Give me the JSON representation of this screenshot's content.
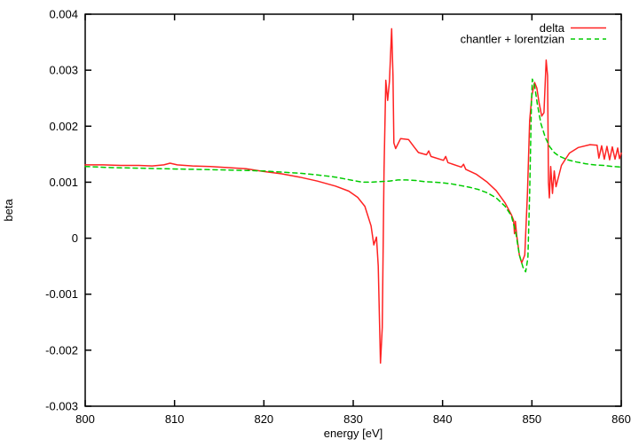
{
  "chart_data": {
    "type": "line",
    "title": "",
    "xlabel": "energy [eV]",
    "ylabel": "beta",
    "xlim": [
      800,
      860
    ],
    "ylim": [
      -0.003,
      0.004
    ],
    "x_ticks": [
      800,
      810,
      820,
      830,
      840,
      850,
      860
    ],
    "x_tick_labels": [
      "800",
      "810",
      "820",
      "830",
      "840",
      "850",
      "860"
    ],
    "y_ticks": [
      -0.003,
      -0.002,
      -0.001,
      0,
      0.001,
      0.002,
      0.003,
      0.004
    ],
    "y_tick_labels": [
      "-0.003",
      "-0.002",
      "-0.001",
      "0",
      "0.001",
      "0.002",
      "0.003",
      "0.004"
    ],
    "grid": false,
    "legend_position": "top-right-inside",
    "background_color": "#ffffff",
    "frame_color": "#000000",
    "text_color": "#000000",
    "series": [
      {
        "name": "delta",
        "color": "#ff2222",
        "style": "solid",
        "points": [
          [
            800,
            0.00131
          ],
          [
            802,
            0.00131
          ],
          [
            804,
            0.0013
          ],
          [
            806,
            0.0013
          ],
          [
            807.5,
            0.00129
          ],
          [
            808.8,
            0.00131
          ],
          [
            809.5,
            0.00134
          ],
          [
            810.3,
            0.00131
          ],
          [
            812,
            0.00129
          ],
          [
            814,
            0.00128
          ],
          [
            816,
            0.00126
          ],
          [
            818,
            0.00124
          ],
          [
            820,
            0.00119
          ],
          [
            822,
            0.00115
          ],
          [
            824,
            0.00109
          ],
          [
            826,
            0.00102
          ],
          [
            828,
            0.00093
          ],
          [
            829.5,
            0.00084
          ],
          [
            830.5,
            0.00073
          ],
          [
            831.3,
            0.00057
          ],
          [
            832,
            0.00022
          ],
          [
            832.3,
            -0.00012
          ],
          [
            832.6,
            2e-05
          ],
          [
            832.8,
            -0.0005
          ],
          [
            833.05,
            -0.00223
          ],
          [
            833.25,
            -0.0016
          ],
          [
            833.45,
            0.0012
          ],
          [
            833.65,
            0.00282
          ],
          [
            833.85,
            0.00246
          ],
          [
            834.05,
            0.0028
          ],
          [
            834.3,
            0.00374
          ],
          [
            834.45,
            0.0029
          ],
          [
            834.55,
            0.0017
          ],
          [
            834.75,
            0.0016
          ],
          [
            835.3,
            0.00178
          ],
          [
            836.2,
            0.00176
          ],
          [
            836.8,
            0.00163
          ],
          [
            837.3,
            0.00153
          ],
          [
            838.2,
            0.00149
          ],
          [
            838.45,
            0.00156
          ],
          [
            838.7,
            0.00146
          ],
          [
            840.1,
            0.00139
          ],
          [
            840.35,
            0.00146
          ],
          [
            840.6,
            0.00135
          ],
          [
            842.1,
            0.00127
          ],
          [
            842.35,
            0.00132
          ],
          [
            842.6,
            0.00123
          ],
          [
            843.8,
            0.00114
          ],
          [
            845,
            0.001
          ],
          [
            846,
            0.00085
          ],
          [
            847,
            0.00063
          ],
          [
            847.7,
            0.00042
          ],
          [
            847.95,
            0.00032
          ],
          [
            848.05,
            8e-05
          ],
          [
            848.15,
            0.0003
          ],
          [
            848.3,
            5e-05
          ],
          [
            848.6,
            -0.0003
          ],
          [
            848.85,
            -0.00044
          ],
          [
            849.2,
            -0.0003
          ],
          [
            849.5,
            0.0008
          ],
          [
            849.75,
            0.0021
          ],
          [
            850.0,
            0.00255
          ],
          [
            850.3,
            0.00278
          ],
          [
            850.55,
            0.00268
          ],
          [
            850.8,
            0.00242
          ],
          [
            851.1,
            0.00218
          ],
          [
            851.35,
            0.00224
          ],
          [
            851.6,
            0.00318
          ],
          [
            851.75,
            0.0029
          ],
          [
            851.85,
            0.001
          ],
          [
            851.95,
            0.00072
          ],
          [
            852.1,
            0.00128
          ],
          [
            852.3,
            0.0008
          ],
          [
            852.5,
            0.0012
          ],
          [
            852.7,
            0.00092
          ],
          [
            853.3,
            0.0013
          ],
          [
            854.2,
            0.00152
          ],
          [
            855.2,
            0.00162
          ],
          [
            856.5,
            0.00167
          ],
          [
            857.3,
            0.00166
          ],
          [
            857.5,
            0.00143
          ],
          [
            857.8,
            0.00165
          ],
          [
            858.1,
            0.00141
          ],
          [
            858.4,
            0.00164
          ],
          [
            858.7,
            0.0014
          ],
          [
            859,
            0.00163
          ],
          [
            859.3,
            0.00141
          ],
          [
            859.6,
            0.00161
          ],
          [
            859.8,
            0.00142
          ],
          [
            860,
            0.00152
          ]
        ]
      },
      {
        "name": "chantler + lorentzian",
        "color": "#00cc00",
        "style": "dashed",
        "points": [
          [
            800,
            0.00128
          ],
          [
            803,
            0.00126
          ],
          [
            806,
            0.00125
          ],
          [
            809,
            0.00124
          ],
          [
            812,
            0.00123
          ],
          [
            815,
            0.00122
          ],
          [
            818,
            0.00121
          ],
          [
            820,
            0.0012
          ],
          [
            822,
            0.00118
          ],
          [
            824,
            0.00116
          ],
          [
            826,
            0.00113
          ],
          [
            828,
            0.00109
          ],
          [
            830,
            0.00103
          ],
          [
            831,
            0.001
          ],
          [
            832,
            0.001
          ],
          [
            833,
            0.00101
          ],
          [
            834,
            0.00102
          ],
          [
            835,
            0.00104
          ],
          [
            836,
            0.00104
          ],
          [
            837,
            0.00103
          ],
          [
            838,
            0.00101
          ],
          [
            839,
            0.001
          ],
          [
            840,
            0.00099
          ],
          [
            841,
            0.00097
          ],
          [
            842,
            0.00094
          ],
          [
            843,
            0.00091
          ],
          [
            844,
            0.00087
          ],
          [
            845,
            0.00081
          ],
          [
            846,
            0.00072
          ],
          [
            847,
            0.00057
          ],
          [
            847.7,
            0.0004
          ],
          [
            848.2,
            0.0001
          ],
          [
            848.6,
            -0.0003
          ],
          [
            849,
            -0.00052
          ],
          [
            849.3,
            -0.0006
          ],
          [
            849.55,
            -0.00035
          ],
          [
            849.75,
            0.0008
          ],
          [
            849.95,
            0.0024
          ],
          [
            850.05,
            0.00284
          ],
          [
            850.3,
            0.00272
          ],
          [
            850.6,
            0.0024
          ],
          [
            851,
            0.00205
          ],
          [
            851.5,
            0.0018
          ],
          [
            852,
            0.00163
          ],
          [
            852.5,
            0.00153
          ],
          [
            853,
            0.00147
          ],
          [
            854,
            0.0014
          ],
          [
            855,
            0.00136
          ],
          [
            856,
            0.00133
          ],
          [
            857,
            0.00131
          ],
          [
            858,
            0.0013
          ],
          [
            859,
            0.00128
          ],
          [
            860,
            0.00127
          ]
        ]
      }
    ]
  }
}
